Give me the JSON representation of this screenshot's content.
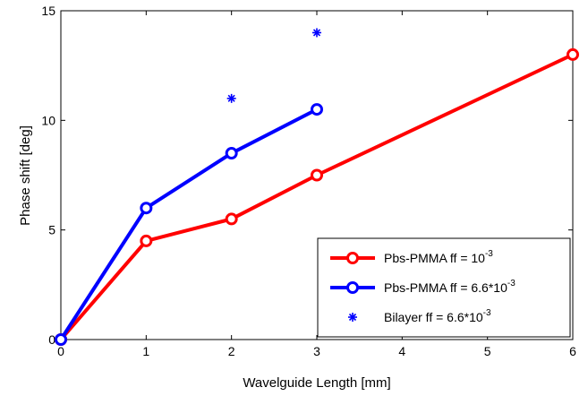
{
  "chart_data": {
    "type": "line",
    "xlabel": "Wavelguide Length [mm]",
    "ylabel": "Phase shift [deg]",
    "xlim": [
      0,
      6
    ],
    "ylim": [
      0,
      15
    ],
    "xticks": [
      0,
      1,
      2,
      3,
      4,
      5,
      6
    ],
    "yticks": [
      0,
      5,
      10,
      15
    ],
    "grid": false,
    "legend_position": "bottom-right",
    "series": [
      {
        "name": "Pbs-PMMA ff = 10",
        "name_sup": "-3",
        "color": "#ff0000",
        "style": "line-circle",
        "x": [
          0,
          1,
          2,
          3,
          6
        ],
        "y": [
          0,
          4.5,
          5.5,
          7.5,
          13
        ]
      },
      {
        "name": "Pbs-PMMA ff = 6.6*10",
        "name_sup": "-3",
        "color": "#0000ff",
        "style": "line-circle",
        "x": [
          0,
          1,
          2,
          3
        ],
        "y": [
          0,
          6,
          8.5,
          10.5
        ]
      },
      {
        "name": "Bilayer ff = 6.6*10",
        "name_sup": "-3",
        "color": "#0000ff",
        "style": "asterisk",
        "x": [
          2,
          3
        ],
        "y": [
          11,
          14
        ]
      }
    ]
  }
}
